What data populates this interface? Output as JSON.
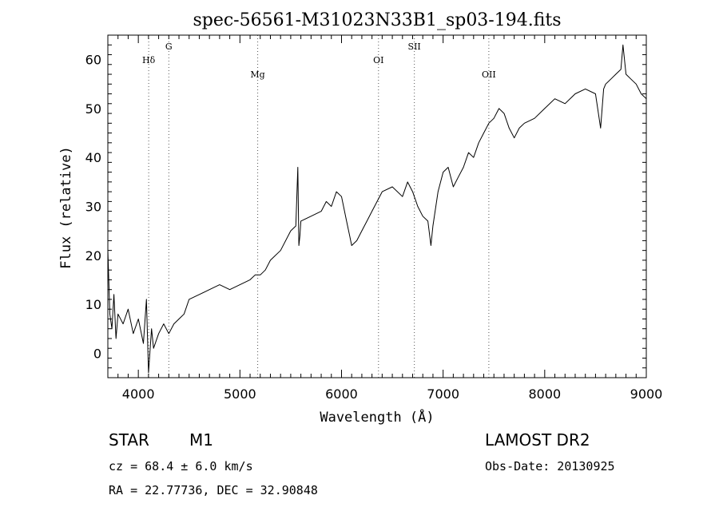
{
  "chart_data": {
    "type": "line",
    "title": "spec-56561-M31023N33B1_sp03-194.fits",
    "xlabel": "Wavelength (Å)",
    "ylabel": "Flux (relative)",
    "xlim": [
      3700,
      9000
    ],
    "ylim": [
      -5,
      65
    ],
    "x_ticks": [
      4000,
      5000,
      6000,
      7000,
      8000,
      9000
    ],
    "x_tick_labels": [
      "4000",
      "5000",
      "6000",
      "7000",
      "8000",
      "9000"
    ],
    "y_ticks": [
      0,
      10,
      20,
      30,
      40,
      50,
      60
    ],
    "y_tick_labels": [
      "0",
      "10",
      "20",
      "30",
      "40",
      "50",
      "60"
    ],
    "grid": false,
    "series": [
      {
        "color": "#000000",
        "x": [
          3700,
          3720,
          3740,
          3760,
          3780,
          3800,
          3850,
          3900,
          3950,
          4000,
          4050,
          4080,
          4100,
          4130,
          4150,
          4200,
          4250,
          4300,
          4350,
          4400,
          4450,
          4500,
          4600,
          4700,
          4800,
          4900,
          5000,
          5100,
          5150,
          5200,
          5250,
          5300,
          5400,
          5500,
          5550,
          5570,
          5580,
          5590,
          5600,
          5700,
          5800,
          5850,
          5900,
          5950,
          6000,
          6050,
          6080,
          6100,
          6150,
          6200,
          6250,
          6300,
          6350,
          6400,
          6500,
          6600,
          6650,
          6700,
          6750,
          6800,
          6850,
          6880,
          6900,
          6950,
          7000,
          7050,
          7100,
          7150,
          7200,
          7250,
          7300,
          7350,
          7400,
          7450,
          7500,
          7550,
          7600,
          7650,
          7700,
          7750,
          7800,
          7900,
          8000,
          8100,
          8200,
          8300,
          8400,
          8500,
          8550,
          8580,
          8600,
          8650,
          8700,
          8750,
          8770,
          8800,
          8850,
          8900,
          8950,
          9000
        ],
        "y": [
          21,
          8,
          5,
          12,
          3,
          8,
          6,
          9,
          4,
          7,
          2,
          11,
          -4,
          5,
          1,
          4,
          6,
          4,
          6,
          7,
          8,
          11,
          12,
          13,
          14,
          13,
          14,
          15,
          16,
          16,
          17,
          19,
          21,
          25,
          26,
          38,
          22,
          24,
          27,
          28,
          29,
          31,
          30,
          33,
          32,
          27,
          24,
          22,
          23,
          25,
          27,
          29,
          31,
          33,
          34,
          32,
          35,
          33,
          30,
          28,
          27,
          22,
          26,
          33,
          37,
          38,
          34,
          36,
          38,
          41,
          40,
          43,
          45,
          47,
          48,
          50,
          49,
          46,
          44,
          46,
          47,
          48,
          50,
          52,
          51,
          53,
          54,
          53,
          46,
          54,
          55,
          56,
          57,
          58,
          63,
          57,
          56,
          55,
          53,
          52
        ]
      }
    ],
    "annotations": [
      {
        "label": "Hδ",
        "x": 4102,
        "level": "high"
      },
      {
        "label": "G",
        "x": 4300,
        "level": "top"
      },
      {
        "label": "Mg",
        "x": 5175,
        "level": "low"
      },
      {
        "label": "OI",
        "x": 6364,
        "level": "high"
      },
      {
        "label": "SII",
        "x": 6717,
        "level": "top"
      },
      {
        "label": "OII",
        "x": 7450,
        "level": "low"
      }
    ]
  },
  "info": {
    "object_type": "STAR",
    "subclass": "M1",
    "survey": "LAMOST DR2",
    "cz": "cz = 68.4 ± 6.0 km/s",
    "obs_date": "Obs-Date: 20130925",
    "coords": "RA =  22.77736, DEC =  32.90848"
  }
}
